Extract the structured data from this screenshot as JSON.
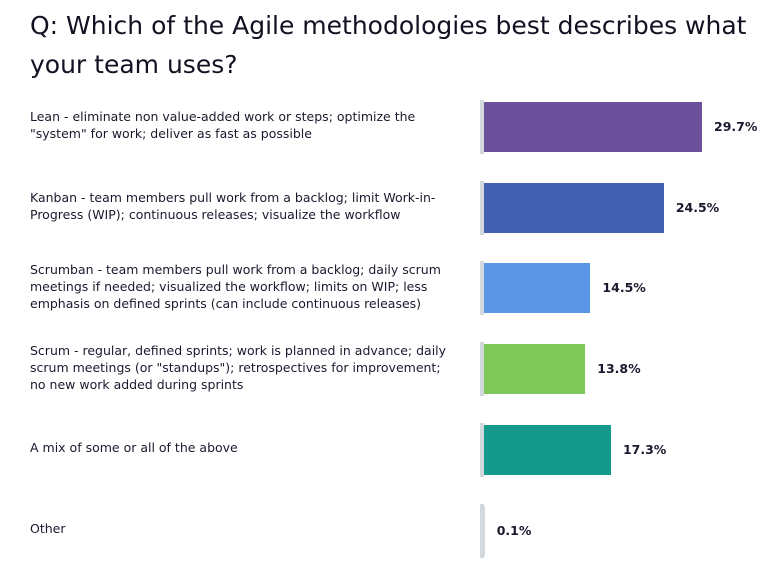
{
  "title": "Q: Which of the Agile methodologies best describes what your team uses?",
  "chart_data": {
    "type": "bar",
    "orientation": "horizontal",
    "title": "Q: Which of the Agile methodologies best describes what your team uses?",
    "xlabel": "",
    "ylabel": "",
    "unit": "%",
    "grid": false,
    "legend": "none",
    "xlim": [
      0,
      29.7
    ],
    "categories": [
      "Lean - eliminate non value-added work or steps; optimize the \"system\" for work; deliver as fast as possible",
      "Kanban - team members pull work from a backlog; limit Work-in-Progress (WIP); continuous releases; visualize the workflow",
      "Scrumban - team members pull work from a backlog; daily scrum meetings if needed; visualized the workflow; limits on WIP; less emphasis on defined sprints (can include continuous releases)",
      "Scrum - regular, defined sprints; work is planned in advance; daily scrum meetings (or \"standups\"); retrospectives for improvement; no new work added during sprints",
      "A mix of some or all of the above",
      "Other"
    ],
    "values": [
      29.7,
      24.5,
      14.5,
      13.8,
      17.3,
      0.1
    ],
    "value_labels": [
      "29.7%",
      "24.5%",
      "14.5%",
      "13.8%",
      "17.3%",
      "0.1%"
    ],
    "colors": [
      "#6b519c",
      "#4361b3",
      "#5b95e6",
      "#7ec85a",
      "#14998c",
      "#d6dadf"
    ],
    "baseline_color": "#d3d8dd"
  }
}
